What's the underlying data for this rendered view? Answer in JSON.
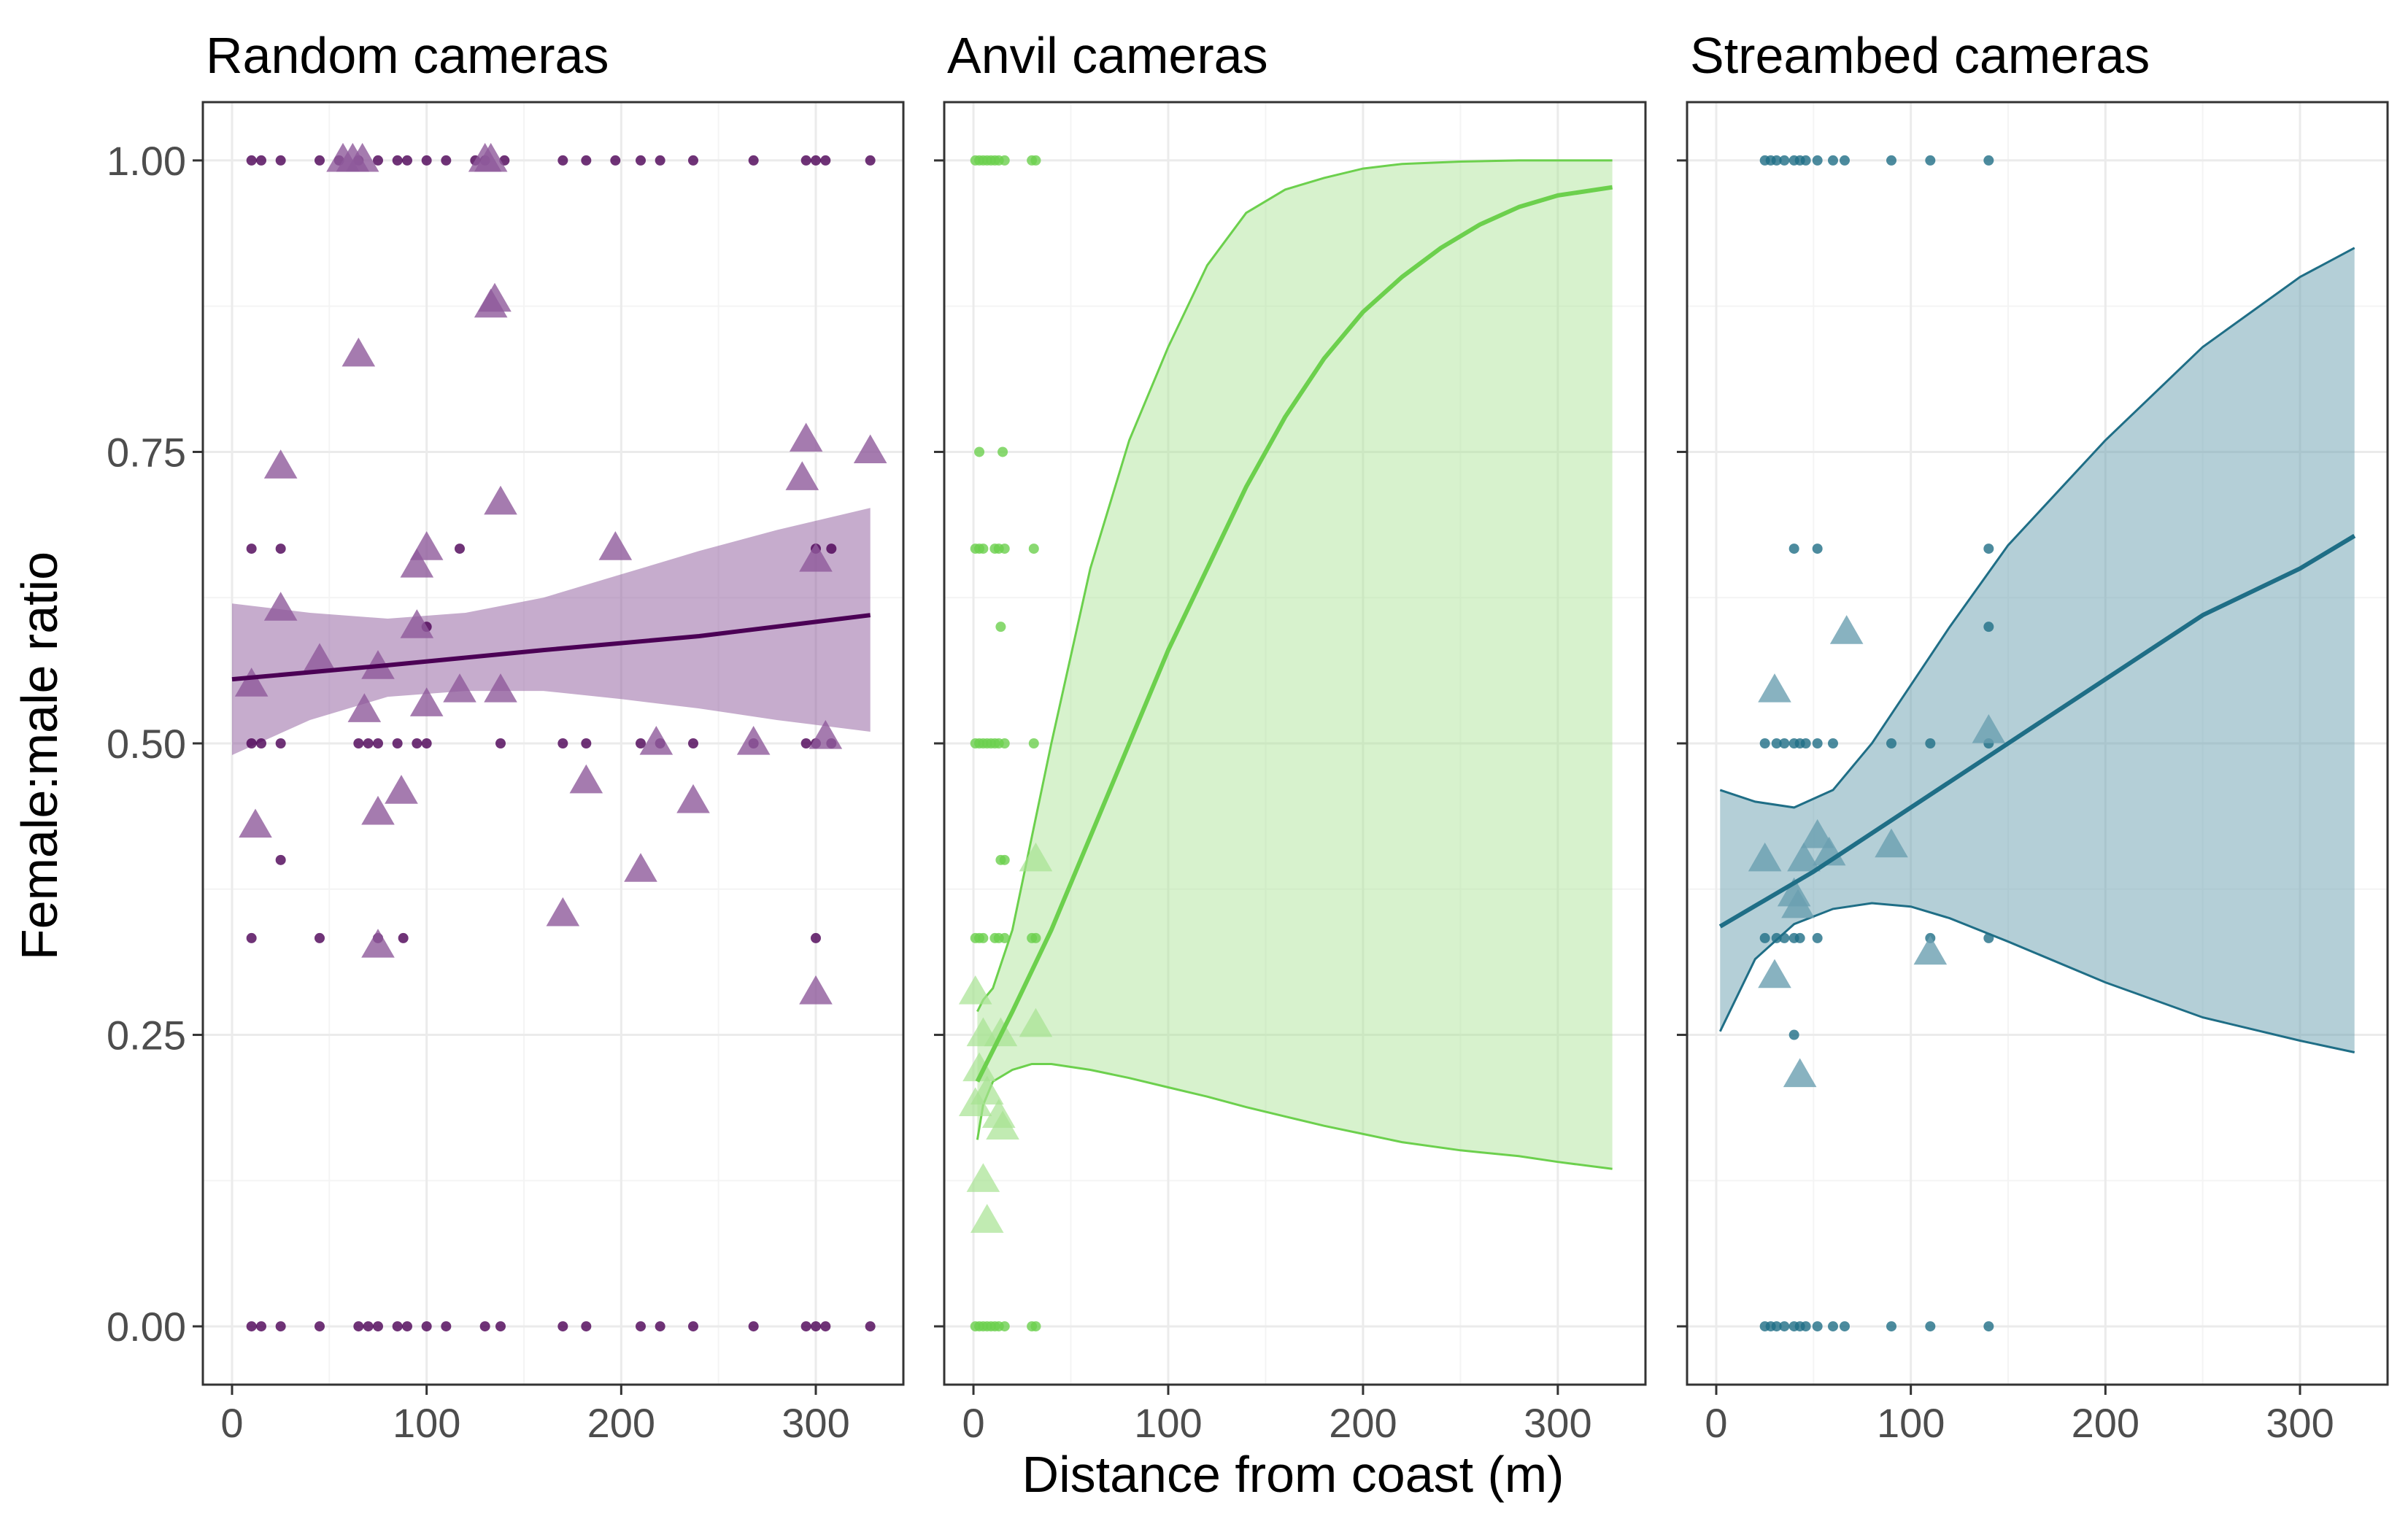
{
  "chart_data": [
    {
      "type": "scatter",
      "title": "Random cameras",
      "color": "#4b0055",
      "ribbon_color": "#8e5a9b",
      "xlim": [
        -15,
        345
      ],
      "ylim": [
        -0.05,
        1.05
      ],
      "x_ticks": [
        0,
        100,
        200,
        300
      ],
      "y_ticks": [
        0.0,
        0.25,
        0.5,
        0.75,
        1.0
      ],
      "y_tick_labels": [
        "0.00",
        "0.25",
        "0.50",
        "0.75",
        "1.00"
      ],
      "points": [
        {
          "x": 10,
          "y": 1.0
        },
        {
          "x": 15,
          "y": 1.0
        },
        {
          "x": 25,
          "y": 1.0
        },
        {
          "x": 45,
          "y": 1.0
        },
        {
          "x": 55,
          "y": 1.0
        },
        {
          "x": 65,
          "y": 1.0
        },
        {
          "x": 75,
          "y": 1.0
        },
        {
          "x": 85,
          "y": 1.0
        },
        {
          "x": 90,
          "y": 1.0
        },
        {
          "x": 100,
          "y": 1.0
        },
        {
          "x": 110,
          "y": 1.0
        },
        {
          "x": 125,
          "y": 1.0
        },
        {
          "x": 130,
          "y": 1.0
        },
        {
          "x": 140,
          "y": 1.0
        },
        {
          "x": 170,
          "y": 1.0
        },
        {
          "x": 182,
          "y": 1.0
        },
        {
          "x": 197,
          "y": 1.0
        },
        {
          "x": 210,
          "y": 1.0
        },
        {
          "x": 220,
          "y": 1.0
        },
        {
          "x": 237,
          "y": 1.0
        },
        {
          "x": 268,
          "y": 1.0
        },
        {
          "x": 295,
          "y": 1.0
        },
        {
          "x": 300,
          "y": 1.0
        },
        {
          "x": 305,
          "y": 1.0
        },
        {
          "x": 328,
          "y": 1.0
        },
        {
          "x": 10,
          "y": 0.667
        },
        {
          "x": 25,
          "y": 0.667
        },
        {
          "x": 117,
          "y": 0.667
        },
        {
          "x": 300,
          "y": 0.667
        },
        {
          "x": 308,
          "y": 0.667
        },
        {
          "x": 100,
          "y": 0.6
        },
        {
          "x": 10,
          "y": 0.5
        },
        {
          "x": 15,
          "y": 0.5
        },
        {
          "x": 25,
          "y": 0.5
        },
        {
          "x": 65,
          "y": 0.5
        },
        {
          "x": 70,
          "y": 0.5
        },
        {
          "x": 75,
          "y": 0.5
        },
        {
          "x": 85,
          "y": 0.5
        },
        {
          "x": 95,
          "y": 0.5
        },
        {
          "x": 100,
          "y": 0.5
        },
        {
          "x": 138,
          "y": 0.5
        },
        {
          "x": 170,
          "y": 0.5
        },
        {
          "x": 182,
          "y": 0.5
        },
        {
          "x": 210,
          "y": 0.5
        },
        {
          "x": 220,
          "y": 0.5
        },
        {
          "x": 237,
          "y": 0.5
        },
        {
          "x": 268,
          "y": 0.5
        },
        {
          "x": 295,
          "y": 0.5
        },
        {
          "x": 300,
          "y": 0.5
        },
        {
          "x": 308,
          "y": 0.5
        },
        {
          "x": 25,
          "y": 0.4
        },
        {
          "x": 10,
          "y": 0.333
        },
        {
          "x": 45,
          "y": 0.333
        },
        {
          "x": 75,
          "y": 0.333
        },
        {
          "x": 88,
          "y": 0.333
        },
        {
          "x": 300,
          "y": 0.333
        },
        {
          "x": 10,
          "y": 0.0
        },
        {
          "x": 15,
          "y": 0.0
        },
        {
          "x": 25,
          "y": 0.0
        },
        {
          "x": 45,
          "y": 0.0
        },
        {
          "x": 65,
          "y": 0.0
        },
        {
          "x": 70,
          "y": 0.0
        },
        {
          "x": 75,
          "y": 0.0
        },
        {
          "x": 85,
          "y": 0.0
        },
        {
          "x": 90,
          "y": 0.0
        },
        {
          "x": 100,
          "y": 0.0
        },
        {
          "x": 110,
          "y": 0.0
        },
        {
          "x": 130,
          "y": 0.0
        },
        {
          "x": 138,
          "y": 0.0
        },
        {
          "x": 170,
          "y": 0.0
        },
        {
          "x": 182,
          "y": 0.0
        },
        {
          "x": 210,
          "y": 0.0
        },
        {
          "x": 220,
          "y": 0.0
        },
        {
          "x": 237,
          "y": 0.0
        },
        {
          "x": 268,
          "y": 0.0
        },
        {
          "x": 295,
          "y": 0.0
        },
        {
          "x": 300,
          "y": 0.0
        },
        {
          "x": 305,
          "y": 0.0
        },
        {
          "x": 328,
          "y": 0.0
        }
      ],
      "triangles": [
        {
          "x": 57,
          "y": 1.0
        },
        {
          "x": 62,
          "y": 1.0
        },
        {
          "x": 67,
          "y": 1.0
        },
        {
          "x": 130,
          "y": 1.0
        },
        {
          "x": 133,
          "y": 1.0
        },
        {
          "x": 135,
          "y": 0.88
        },
        {
          "x": 133,
          "y": 0.875
        },
        {
          "x": 65,
          "y": 0.833
        },
        {
          "x": 25,
          "y": 0.737
        },
        {
          "x": 138,
          "y": 0.706
        },
        {
          "x": 295,
          "y": 0.76
        },
        {
          "x": 328,
          "y": 0.75
        },
        {
          "x": 293,
          "y": 0.727
        },
        {
          "x": 100,
          "y": 0.667
        },
        {
          "x": 197,
          "y": 0.667
        },
        {
          "x": 95,
          "y": 0.652
        },
        {
          "x": 300,
          "y": 0.657
        },
        {
          "x": 25,
          "y": 0.615
        },
        {
          "x": 95,
          "y": 0.6
        },
        {
          "x": 45,
          "y": 0.571
        },
        {
          "x": 75,
          "y": 0.565
        },
        {
          "x": 10,
          "y": 0.55
        },
        {
          "x": 117,
          "y": 0.545
        },
        {
          "x": 138,
          "y": 0.545
        },
        {
          "x": 100,
          "y": 0.533
        },
        {
          "x": 68,
          "y": 0.528
        },
        {
          "x": 218,
          "y": 0.5
        },
        {
          "x": 268,
          "y": 0.5
        },
        {
          "x": 305,
          "y": 0.505
        },
        {
          "x": 182,
          "y": 0.467
        },
        {
          "x": 87,
          "y": 0.458
        },
        {
          "x": 237,
          "y": 0.45
        },
        {
          "x": 75,
          "y": 0.44
        },
        {
          "x": 12,
          "y": 0.429
        },
        {
          "x": 210,
          "y": 0.391
        },
        {
          "x": 170,
          "y": 0.353
        },
        {
          "x": 75,
          "y": 0.326
        },
        {
          "x": 300,
          "y": 0.286
        }
      ],
      "fit": {
        "x": [
          0,
          80,
          160,
          240,
          328
        ],
        "y": [
          0.555,
          0.567,
          0.58,
          0.592,
          0.61
        ]
      },
      "ribbon": {
        "x": [
          0,
          40,
          80,
          120,
          160,
          200,
          240,
          280,
          328
        ],
        "lower": [
          0.49,
          0.52,
          0.54,
          0.545,
          0.545,
          0.538,
          0.53,
          0.52,
          0.51
        ],
        "upper": [
          0.62,
          0.612,
          0.607,
          0.612,
          0.625,
          0.645,
          0.665,
          0.683,
          0.702
        ]
      }
    },
    {
      "type": "scatter",
      "title": "Anvil cameras",
      "color": "#6cd04d",
      "ribbon_color": "#a6e291",
      "xlim": [
        -15,
        345
      ],
      "ylim": [
        -0.05,
        1.05
      ],
      "x_ticks": [
        0,
        100,
        200,
        300
      ],
      "y_ticks": [
        0.0,
        0.25,
        0.5,
        0.75,
        1.0
      ],
      "y_tick_labels": [
        "0.00",
        "0.25",
        "0.50",
        "0.75",
        "1.00"
      ],
      "points": [
        {
          "x": 1,
          "y": 1.0
        },
        {
          "x": 3,
          "y": 1.0
        },
        {
          "x": 5,
          "y": 1.0
        },
        {
          "x": 7,
          "y": 1.0
        },
        {
          "x": 9,
          "y": 1.0
        },
        {
          "x": 11,
          "y": 1.0
        },
        {
          "x": 13,
          "y": 1.0
        },
        {
          "x": 16,
          "y": 1.0
        },
        {
          "x": 30,
          "y": 1.0
        },
        {
          "x": 32,
          "y": 1.0
        },
        {
          "x": 3,
          "y": 0.75
        },
        {
          "x": 15,
          "y": 0.75
        },
        {
          "x": 1,
          "y": 0.667
        },
        {
          "x": 3,
          "y": 0.667
        },
        {
          "x": 5,
          "y": 0.667
        },
        {
          "x": 11,
          "y": 0.667
        },
        {
          "x": 13,
          "y": 0.667
        },
        {
          "x": 16,
          "y": 0.667
        },
        {
          "x": 31,
          "y": 0.667
        },
        {
          "x": 14,
          "y": 0.6
        },
        {
          "x": 1,
          "y": 0.5
        },
        {
          "x": 3,
          "y": 0.5
        },
        {
          "x": 5,
          "y": 0.5
        },
        {
          "x": 7,
          "y": 0.5
        },
        {
          "x": 9,
          "y": 0.5
        },
        {
          "x": 11,
          "y": 0.5
        },
        {
          "x": 13,
          "y": 0.5
        },
        {
          "x": 16,
          "y": 0.5
        },
        {
          "x": 31,
          "y": 0.5
        },
        {
          "x": 14,
          "y": 0.4
        },
        {
          "x": 16,
          "y": 0.4
        },
        {
          "x": 1,
          "y": 0.333
        },
        {
          "x": 3,
          "y": 0.333
        },
        {
          "x": 5,
          "y": 0.333
        },
        {
          "x": 11,
          "y": 0.333
        },
        {
          "x": 13,
          "y": 0.333
        },
        {
          "x": 16,
          "y": 0.333
        },
        {
          "x": 30,
          "y": 0.333
        },
        {
          "x": 32,
          "y": 0.333
        },
        {
          "x": 1,
          "y": 0.0
        },
        {
          "x": 3,
          "y": 0.0
        },
        {
          "x": 5,
          "y": 0.0
        },
        {
          "x": 7,
          "y": 0.0
        },
        {
          "x": 9,
          "y": 0.0
        },
        {
          "x": 11,
          "y": 0.0
        },
        {
          "x": 13,
          "y": 0.0
        },
        {
          "x": 16,
          "y": 0.0
        },
        {
          "x": 30,
          "y": 0.0
        },
        {
          "x": 32,
          "y": 0.0
        }
      ],
      "triangles": [
        {
          "x": 32,
          "y": 0.4
        },
        {
          "x": 1,
          "y": 0.286
        },
        {
          "x": 5,
          "y": 0.25
        },
        {
          "x": 14,
          "y": 0.25
        },
        {
          "x": 32,
          "y": 0.258
        },
        {
          "x": 3,
          "y": 0.22
        },
        {
          "x": 7,
          "y": 0.2
        },
        {
          "x": 1,
          "y": 0.19
        },
        {
          "x": 13,
          "y": 0.18
        },
        {
          "x": 15,
          "y": 0.17
        },
        {
          "x": 5,
          "y": 0.125
        },
        {
          "x": 7,
          "y": 0.09
        }
      ],
      "fit": {
        "x": [
          2,
          20,
          40,
          60,
          80,
          100,
          120,
          140,
          160,
          180,
          200,
          220,
          240,
          260,
          280,
          300,
          328
        ],
        "y": [
          0.21,
          0.27,
          0.34,
          0.42,
          0.5,
          0.58,
          0.65,
          0.72,
          0.78,
          0.83,
          0.87,
          0.9,
          0.925,
          0.945,
          0.96,
          0.97,
          0.977
        ]
      },
      "ribbon": {
        "x": [
          2,
          5,
          10,
          20,
          30,
          40,
          60,
          80,
          100,
          120,
          140,
          160,
          180,
          200,
          220,
          250,
          280,
          300,
          328
        ],
        "lower": [
          0.16,
          0.19,
          0.21,
          0.22,
          0.225,
          0.225,
          0.22,
          0.213,
          0.205,
          0.197,
          0.188,
          0.18,
          0.172,
          0.165,
          0.158,
          0.151,
          0.146,
          0.141,
          0.135
        ],
        "upper": [
          0.27,
          0.28,
          0.29,
          0.34,
          0.42,
          0.5,
          0.65,
          0.76,
          0.84,
          0.91,
          0.955,
          0.975,
          0.985,
          0.993,
          0.997,
          0.999,
          1.0,
          1.0,
          1.0
        ]
      }
    },
    {
      "type": "scatter",
      "title": "Streambed cameras",
      "color": "#1f6e86",
      "ribbon_color": "#6a9fb0",
      "xlim": [
        -15,
        345
      ],
      "ylim": [
        -0.05,
        1.05
      ],
      "x_ticks": [
        0,
        100,
        200,
        300
      ],
      "y_ticks": [
        0.0,
        0.25,
        0.5,
        0.75,
        1.0
      ],
      "y_tick_labels": [
        "0.00",
        "0.25",
        "0.50",
        "0.75",
        "1.00"
      ],
      "points": [
        {
          "x": 25,
          "y": 1.0
        },
        {
          "x": 28,
          "y": 1.0
        },
        {
          "x": 31,
          "y": 1.0
        },
        {
          "x": 35,
          "y": 1.0
        },
        {
          "x": 40,
          "y": 1.0
        },
        {
          "x": 43,
          "y": 1.0
        },
        {
          "x": 46,
          "y": 1.0
        },
        {
          "x": 52,
          "y": 1.0
        },
        {
          "x": 60,
          "y": 1.0
        },
        {
          "x": 66,
          "y": 1.0
        },
        {
          "x": 90,
          "y": 1.0
        },
        {
          "x": 110,
          "y": 1.0
        },
        {
          "x": 140,
          "y": 1.0
        },
        {
          "x": 40,
          "y": 0.667
        },
        {
          "x": 52,
          "y": 0.667
        },
        {
          "x": 140,
          "y": 0.667
        },
        {
          "x": 140,
          "y": 0.6
        },
        {
          "x": 25,
          "y": 0.5
        },
        {
          "x": 31,
          "y": 0.5
        },
        {
          "x": 35,
          "y": 0.5
        },
        {
          "x": 40,
          "y": 0.5
        },
        {
          "x": 43,
          "y": 0.5
        },
        {
          "x": 46,
          "y": 0.5
        },
        {
          "x": 52,
          "y": 0.5
        },
        {
          "x": 60,
          "y": 0.5
        },
        {
          "x": 90,
          "y": 0.5
        },
        {
          "x": 110,
          "y": 0.5
        },
        {
          "x": 140,
          "y": 0.5
        },
        {
          "x": 25,
          "y": 0.333
        },
        {
          "x": 31,
          "y": 0.333
        },
        {
          "x": 35,
          "y": 0.333
        },
        {
          "x": 40,
          "y": 0.333
        },
        {
          "x": 43,
          "y": 0.333
        },
        {
          "x": 52,
          "y": 0.333
        },
        {
          "x": 110,
          "y": 0.333
        },
        {
          "x": 140,
          "y": 0.333
        },
        {
          "x": 40,
          "y": 0.25
        },
        {
          "x": 25,
          "y": 0.0
        },
        {
          "x": 28,
          "y": 0.0
        },
        {
          "x": 31,
          "y": 0.0
        },
        {
          "x": 35,
          "y": 0.0
        },
        {
          "x": 40,
          "y": 0.0
        },
        {
          "x": 43,
          "y": 0.0
        },
        {
          "x": 46,
          "y": 0.0
        },
        {
          "x": 52,
          "y": 0.0
        },
        {
          "x": 60,
          "y": 0.0
        },
        {
          "x": 66,
          "y": 0.0
        },
        {
          "x": 90,
          "y": 0.0
        },
        {
          "x": 110,
          "y": 0.0
        },
        {
          "x": 140,
          "y": 0.0
        }
      ],
      "triangles": [
        {
          "x": 67,
          "y": 0.595
        },
        {
          "x": 30,
          "y": 0.545
        },
        {
          "x": 140,
          "y": 0.51
        },
        {
          "x": 52,
          "y": 0.42
        },
        {
          "x": 90,
          "y": 0.412
        },
        {
          "x": 25,
          "y": 0.4
        },
        {
          "x": 45,
          "y": 0.4
        },
        {
          "x": 58,
          "y": 0.405
        },
        {
          "x": 40,
          "y": 0.37
        },
        {
          "x": 42,
          "y": 0.36
        },
        {
          "x": 110,
          "y": 0.32
        },
        {
          "x": 30,
          "y": 0.3
        },
        {
          "x": 43,
          "y": 0.215
        }
      ],
      "fit": {
        "x": [
          2,
          50,
          100,
          150,
          200,
          250,
          300,
          328
        ],
        "y": [
          0.343,
          0.39,
          0.445,
          0.5,
          0.555,
          0.61,
          0.65,
          0.678
        ]
      },
      "ribbon": {
        "x": [
          2,
          20,
          40,
          60,
          80,
          100,
          120,
          150,
          200,
          250,
          300,
          328
        ],
        "lower": [
          0.253,
          0.315,
          0.345,
          0.358,
          0.363,
          0.36,
          0.35,
          0.33,
          0.295,
          0.265,
          0.245,
          0.235
        ],
        "upper": [
          0.46,
          0.45,
          0.445,
          0.46,
          0.5,
          0.55,
          0.6,
          0.67,
          0.76,
          0.84,
          0.9,
          0.925
        ]
      }
    }
  ],
  "axes": {
    "xlabel": "Distance from coast (m)",
    "ylabel": "Female:male ratio"
  }
}
